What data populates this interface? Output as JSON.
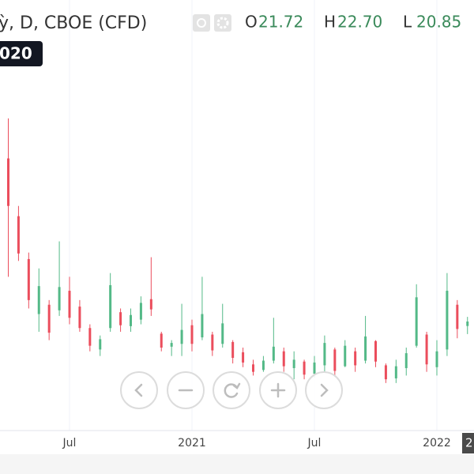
{
  "chart_data": {
    "type": "candlestick",
    "title": "ỳ, D, CBOE (CFD)",
    "ohlc_legend": [
      {
        "key": "O",
        "value": "21.72"
      },
      {
        "key": "H",
        "value": "22.70"
      },
      {
        "key": "L",
        "value": "20.85"
      }
    ],
    "date_badge": "020",
    "crosshair_label": "2",
    "categories": [
      null,
      null,
      null,
      null,
      null,
      null,
      "Jul",
      null,
      null,
      null,
      null,
      null,
      null,
      null,
      null,
      null,
      null,
      null,
      "2021",
      null,
      null,
      null,
      null,
      null,
      null,
      null,
      null,
      null,
      null,
      null,
      "Jul",
      null,
      null,
      null,
      null,
      null,
      null,
      null,
      null,
      null,
      null,
      null,
      "2022",
      null,
      null,
      null
    ],
    "candles": {
      "open": [
        39.7,
        33.5,
        28.9,
        23.0,
        24.0,
        23.4,
        25.5,
        23.8,
        21.5,
        19.2,
        21.5,
        23.2,
        21.7,
        22.4,
        24.6,
        20.9,
        19.5,
        19.8,
        21.8,
        20.5,
        20.8,
        19.8,
        20.0,
        18.9,
        17.6,
        17.0,
        18.0,
        19.0,
        17.2,
        17.9,
        16.6,
        17.5,
        19.2,
        17.4,
        19.0,
        18.0,
        20.1,
        17.5,
        16.1,
        17.2,
        19.6,
        20.8,
        17.3,
        19.2,
        24.0,
        21.72
      ],
      "high": [
        44.0,
        34.6,
        29.6,
        27.9,
        24.5,
        30.8,
        27.0,
        24.5,
        21.9,
        20.7,
        27.4,
        23.6,
        23.6,
        24.9,
        29.1,
        21.1,
        20.2,
        24.1,
        22.4,
        27.0,
        21.1,
        24.1,
        20.2,
        19.4,
        18.1,
        18.5,
        22.6,
        19.4,
        19.0,
        18.1,
        18.5,
        20.7,
        19.4,
        20.2,
        19.4,
        22.8,
        20.2,
        17.7,
        18.1,
        19.4,
        26.2,
        21.1,
        20.2,
        27.4,
        24.5,
        22.7
      ],
      "low": [
        27.0,
        28.7,
        23.6,
        21.1,
        20.2,
        22.8,
        21.9,
        21.1,
        19.0,
        18.5,
        21.1,
        21.1,
        21.1,
        21.9,
        22.8,
        19.0,
        18.5,
        18.5,
        19.0,
        20.2,
        18.5,
        19.4,
        17.7,
        17.3,
        16.4,
        16.8,
        17.7,
        16.8,
        16.0,
        16.0,
        16.2,
        16.8,
        16.4,
        17.3,
        16.8,
        17.7,
        17.3,
        15.6,
        15.6,
        16.4,
        19.4,
        16.8,
        16.4,
        18.5,
        20.4,
        20.85
      ],
      "close": [
        34.6,
        29.5,
        24.5,
        26.0,
        21.0,
        25.9,
        22.6,
        21.5,
        19.6,
        20.3,
        26.1,
        21.8,
        22.9,
        24.2,
        23.5,
        19.4,
        19.9,
        21.3,
        19.8,
        23.0,
        19.1,
        22.0,
        18.3,
        17.8,
        16.8,
        18.0,
        19.5,
        17.4,
        18.1,
        16.5,
        17.8,
        19.9,
        16.9,
        19.6,
        17.5,
        20.6,
        17.9,
        16.0,
        17.4,
        18.8,
        24.8,
        17.6,
        19.0,
        25.5,
        21.4,
        22.2
      ]
    },
    "up_color": "#53b987",
    "down_color": "#eb4d5c",
    "ylim": [
      10.5,
      56.7
    ],
    "grid": true
  }
}
